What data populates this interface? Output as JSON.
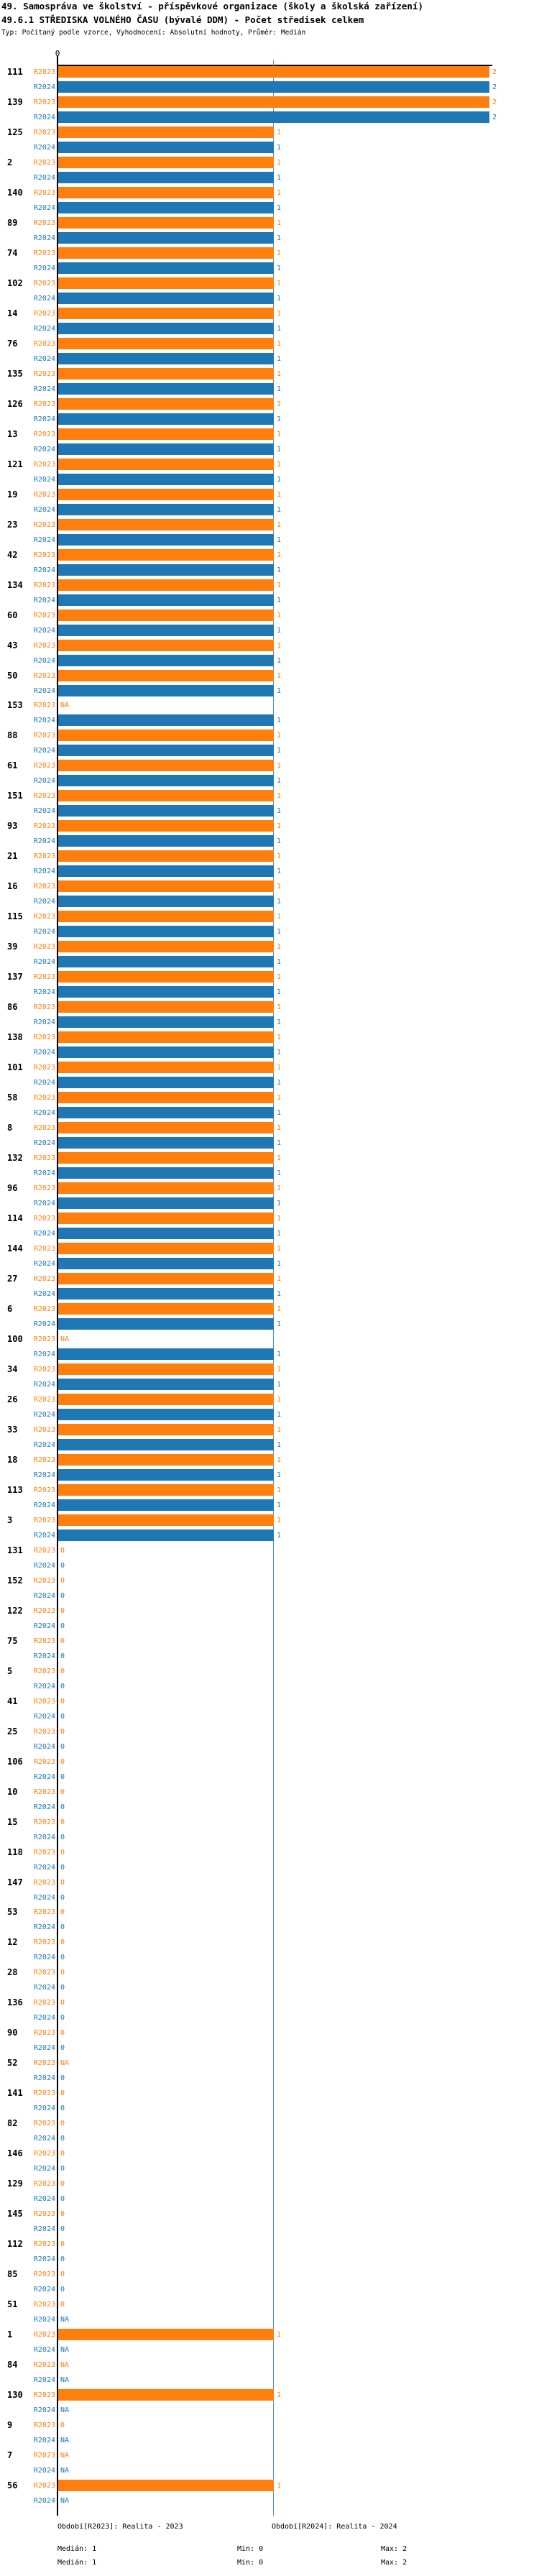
{
  "header": {
    "title_line1": "49. Samospráva ve školství - příspěvkové organizace (školy a školská zařízení)",
    "title_line2": "49.6.1 STŘEDISKA VOLNÉHO ČASU (bývalé DDM) - Počet středisek celkem",
    "meta_line": "Typ: Počítaný podle vzorce, Vyhodnocení: Absolutní hodnoty, Průměr: Medián"
  },
  "axis": {
    "tick_label": "0",
    "xlim": [
      0,
      2
    ],
    "median_value": 1
  },
  "colors": {
    "r2023": "#ff7f0e",
    "r2024": "#1f77b4",
    "median_line": "#4a90c2",
    "axis": "#000000"
  },
  "na_label": "NA",
  "legend": {
    "r2023_title": "Období[R2023]: Realita - 2023",
    "r2024_title": "Období[R2024]: Realita - 2024",
    "r2023_median": "Medián: 1",
    "r2023_min": "Min: 0",
    "r2023_max": "Max: 2",
    "r2024_median": "Medián: 1",
    "r2024_min": "Min: 0",
    "r2024_max": "Max: 2"
  },
  "chart_data": {
    "type": "bar",
    "orientation": "horizontal",
    "title": "49.6.1 STŘEDISKA VOLNÉHO ČASU (bývalé DDM) - Počet středisek celkem",
    "xlabel": "",
    "ylabel": "",
    "xlim": [
      0,
      2
    ],
    "grid": false,
    "legend_position": "bottom",
    "median": 1,
    "min": 0,
    "max": 2,
    "categories": [
      "111",
      "139",
      "125",
      "2",
      "140",
      "89",
      "74",
      "102",
      "14",
      "76",
      "135",
      "126",
      "13",
      "121",
      "19",
      "23",
      "42",
      "134",
      "60",
      "43",
      "50",
      "153",
      "88",
      "61",
      "151",
      "93",
      "21",
      "16",
      "115",
      "39",
      "137",
      "86",
      "138",
      "101",
      "58",
      "8",
      "132",
      "96",
      "114",
      "144",
      "27",
      "6",
      "100",
      "34",
      "26",
      "33",
      "18",
      "113",
      "3",
      "131",
      "152",
      "122",
      "75",
      "5",
      "41",
      "25",
      "106",
      "10",
      "15",
      "118",
      "147",
      "53",
      "12",
      "28",
      "136",
      "90",
      "52",
      "141",
      "82",
      "146",
      "129",
      "145",
      "112",
      "85",
      "51",
      "1",
      "84",
      "130",
      "9",
      "7",
      "56"
    ],
    "series": [
      {
        "name": "R2023",
        "values": [
          2,
          2,
          1,
          1,
          1,
          1,
          1,
          1,
          1,
          1,
          1,
          1,
          1,
          1,
          1,
          1,
          1,
          1,
          1,
          1,
          1,
          "NA",
          1,
          1,
          1,
          1,
          1,
          1,
          1,
          1,
          1,
          1,
          1,
          1,
          1,
          1,
          1,
          1,
          1,
          1,
          1,
          1,
          "NA",
          1,
          1,
          1,
          1,
          1,
          1,
          0,
          0,
          0,
          0,
          0,
          0,
          0,
          0,
          0,
          0,
          0,
          0,
          0,
          0,
          0,
          0,
          0,
          "NA",
          0,
          0,
          0,
          0,
          0,
          0,
          0,
          0,
          1,
          "NA",
          1,
          0,
          "NA",
          1
        ]
      },
      {
        "name": "R2024",
        "values": [
          2,
          2,
          1,
          1,
          1,
          1,
          1,
          1,
          1,
          1,
          1,
          1,
          1,
          1,
          1,
          1,
          1,
          1,
          1,
          1,
          1,
          1,
          1,
          1,
          1,
          1,
          1,
          1,
          1,
          1,
          1,
          1,
          1,
          1,
          1,
          1,
          1,
          1,
          1,
          1,
          1,
          1,
          1,
          1,
          1,
          1,
          1,
          1,
          1,
          0,
          0,
          0,
          0,
          0,
          0,
          0,
          0,
          0,
          0,
          0,
          0,
          0,
          0,
          0,
          0,
          0,
          0,
          0,
          0,
          0,
          0,
          0,
          0,
          0,
          "NA",
          "NA",
          "NA",
          "NA",
          "NA",
          "NA",
          "NA"
        ]
      }
    ]
  }
}
